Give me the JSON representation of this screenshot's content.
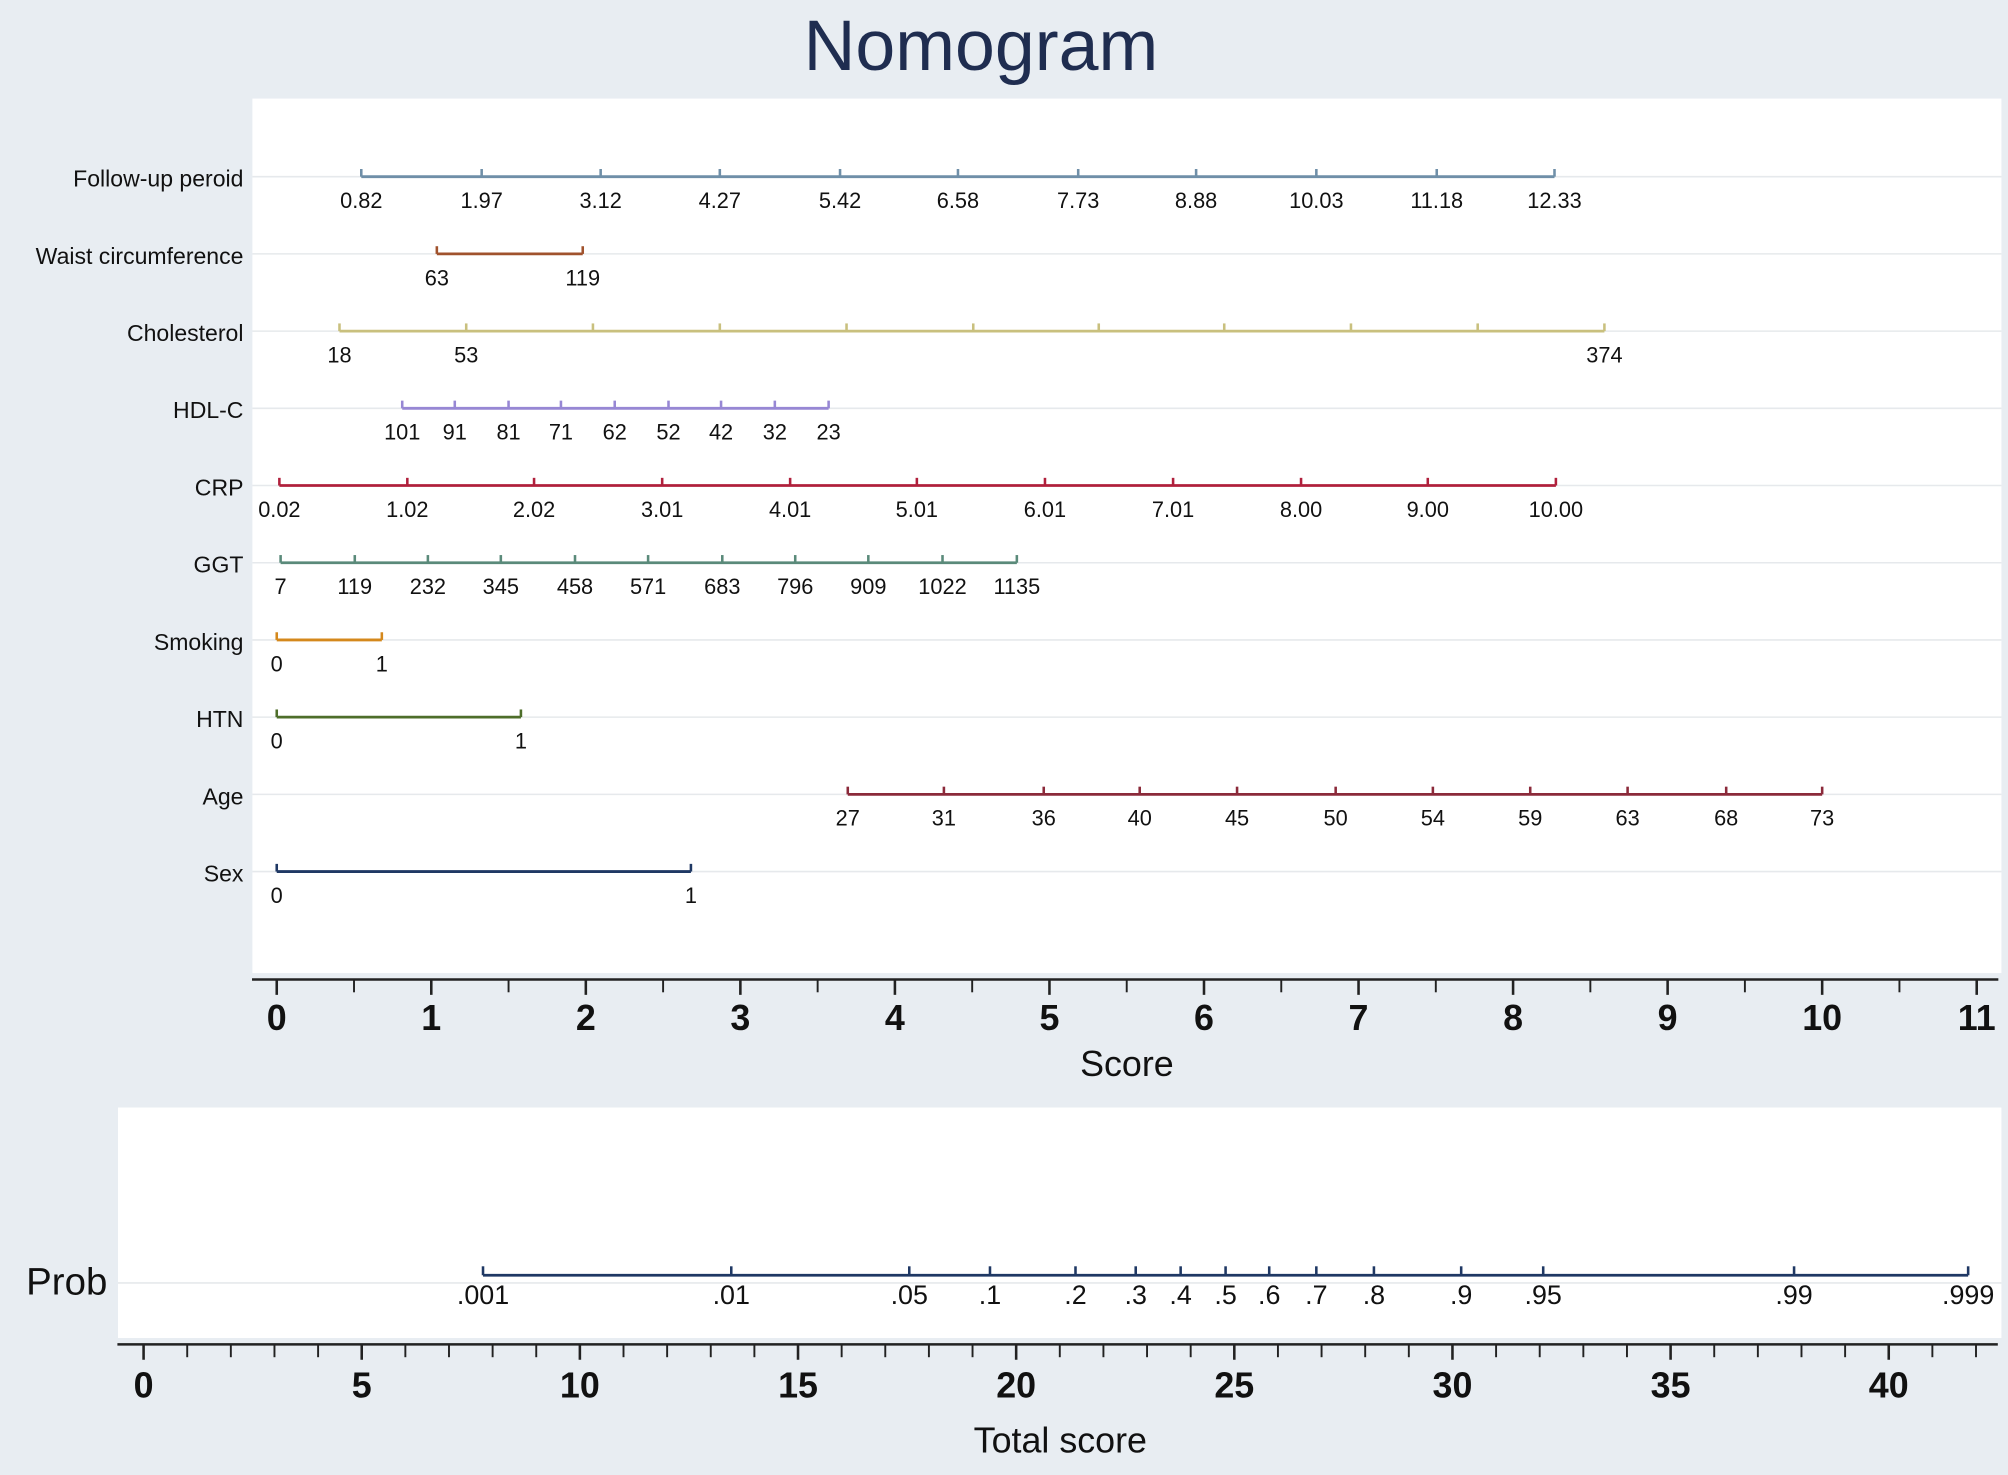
{
  "chart_data": [
    {
      "type": "nomogram",
      "title": "Nomogram",
      "xlabel": "Score",
      "xlim": [
        -0.16,
        11.14
      ],
      "xticks": [
        0,
        1,
        2,
        3,
        4,
        5,
        6,
        7,
        8,
        9,
        10,
        11
      ],
      "xminor": [
        0.5,
        1.5,
        2.5,
        3.5,
        4.5,
        5.5,
        6.5,
        7.5,
        8.5,
        9.5,
        10.5
      ],
      "grid": true,
      "rows": [
        {
          "name": "Follow-up peroid",
          "color": "#6f8fa8",
          "ticks": [
            {
              "value": 0.82,
              "score": 0.547
            },
            {
              "value": 1.97,
              "score": 1.326
            },
            {
              "value": 3.12,
              "score": 2.096
            },
            {
              "value": 4.27,
              "score": 2.867
            },
            {
              "value": 5.42,
              "score": 3.645
            },
            {
              "value": 6.58,
              "score": 4.408
            },
            {
              "value": 7.73,
              "score": 5.186
            },
            {
              "value": 8.88,
              "score": 5.949
            },
            {
              "value": 10.03,
              "score": 6.727
            },
            {
              "value": 11.18,
              "score": 7.506
            },
            {
              "value": 12.33,
              "score": 8.268
            }
          ]
        },
        {
          "name": "Waist circumference",
          "color": "#a0522d",
          "ticks": [
            {
              "value": 63,
              "score": 1.036
            },
            {
              "value": 119,
              "score": 1.98
            }
          ]
        },
        {
          "name": "Cholesterol",
          "color": "#c9c07e",
          "ticks": [
            {
              "value": 18,
              "score": 0.406
            },
            {
              "value": 53,
              "score": 1.226
            },
            {
              "value": null,
              "score": 2.046
            },
            {
              "value": null,
              "score": 2.867
            },
            {
              "value": null,
              "score": 3.687
            },
            {
              "value": null,
              "score": 4.507
            },
            {
              "value": null,
              "score": 5.319
            },
            {
              "value": null,
              "score": 6.131
            },
            {
              "value": null,
              "score": 6.951
            },
            {
              "value": null,
              "score": 7.771
            },
            {
              "value": 374,
              "score": 8.591
            }
          ]
        },
        {
          "name": "HDL-C",
          "color": "#9787d4",
          "ticks": [
            {
              "value": 101,
              "score": 0.812
            },
            {
              "value": 91,
              "score": 1.152
            },
            {
              "value": 81,
              "score": 1.5
            },
            {
              "value": 71,
              "score": 1.839
            },
            {
              "value": 62,
              "score": 2.187
            },
            {
              "value": 52,
              "score": 2.535
            },
            {
              "value": 42,
              "score": 2.875
            },
            {
              "value": 32,
              "score": 3.223
            },
            {
              "value": 23,
              "score": 3.571
            }
          ]
        },
        {
          "name": "CRP",
          "color": "#b0203c",
          "ticks": [
            {
              "value": 0.02,
              "score": 0.017
            },
            {
              "value": 1.02,
              "score": 0.845
            },
            {
              "value": 2.02,
              "score": 1.665
            },
            {
              "value": 3.01,
              "score": 2.494
            },
            {
              "value": 4.01,
              "score": 3.322
            },
            {
              "value": 5.01,
              "score": 4.142
            },
            {
              "value": 6.01,
              "score": 4.971
            },
            {
              "value": 7.01,
              "score": 5.8
            },
            {
              "value": 8,
              "label": "8.00",
              "score": 6.628
            },
            {
              "value": 9,
              "label": "9.00",
              "score": 7.448
            },
            {
              "value": 10,
              "label": "10.00",
              "score": 8.277
            }
          ]
        },
        {
          "name": "GGT",
          "color": "#5a8a7a",
          "ticks": [
            {
              "value": 7,
              "score": 0.025
            },
            {
              "value": 119,
              "score": 0.505
            },
            {
              "value": 232,
              "score": 0.978
            },
            {
              "value": 345,
              "score": 1.45
            },
            {
              "value": 458,
              "score": 1.93
            },
            {
              "value": 571,
              "score": 2.403
            },
            {
              "value": 683,
              "score": 2.883
            },
            {
              "value": 796,
              "score": 3.355
            },
            {
              "value": 909,
              "score": 3.828
            },
            {
              "value": 1022,
              "score": 4.308
            },
            {
              "value": 1135,
              "score": 4.789
            }
          ]
        },
        {
          "name": "Smoking",
          "color": "#d4881c",
          "ticks": [
            {
              "value": 0,
              "score": 0
            },
            {
              "value": 1,
              "score": 0.68
            }
          ]
        },
        {
          "name": "HTN",
          "color": "#4e6e2a",
          "ticks": [
            {
              "value": 0,
              "score": 0
            },
            {
              "value": 1,
              "score": 1.58
            }
          ]
        },
        {
          "name": "Age",
          "color": "#8b2a3a",
          "ticks": [
            {
              "value": 27,
              "score": 3.695
            },
            {
              "value": 31,
              "score": 4.317
            },
            {
              "value": 36,
              "score": 4.963
            },
            {
              "value": 40,
              "score": 5.584
            },
            {
              "value": 45,
              "score": 6.214
            },
            {
              "value": 50,
              "score": 6.852
            },
            {
              "value": 54,
              "score": 7.481
            },
            {
              "value": 59,
              "score": 8.111
            },
            {
              "value": 63,
              "score": 8.741
            },
            {
              "value": 68,
              "score": 9.379
            },
            {
              "value": 73,
              "score": 10
            }
          ]
        },
        {
          "name": "Sex",
          "color": "#1f3864",
          "ticks": [
            {
              "value": 0,
              "score": 0
            },
            {
              "value": 1,
              "score": 2.68
            }
          ]
        }
      ]
    },
    {
      "type": "probability-scale",
      "ylabel": "Prob",
      "xlabel": "Total score",
      "color": "#1f3864",
      "grid": true,
      "xlim": [
        -0.6,
        42.5
      ],
      "xticks": [
        0,
        5,
        10,
        15,
        20,
        25,
        30,
        35,
        40
      ],
      "xminor": [
        1,
        2,
        3,
        4,
        6,
        7,
        8,
        9,
        11,
        12,
        13,
        14,
        16,
        17,
        18,
        19,
        21,
        22,
        23,
        24,
        26,
        27,
        28,
        29,
        31,
        32,
        33,
        34,
        36,
        37,
        38,
        39,
        41,
        42
      ],
      "ticks": [
        {
          "value": 0.001,
          "label": ".001",
          "score": 7.78
        },
        {
          "value": 0.01,
          "label": ".01",
          "score": 13.47
        },
        {
          "value": 0.05,
          "label": ".05",
          "score": 17.55
        },
        {
          "value": 0.1,
          "label": ".1",
          "score": 19.4
        },
        {
          "value": 0.2,
          "label": ".2",
          "score": 21.36
        },
        {
          "value": 0.3,
          "label": ".3",
          "score": 22.74
        },
        {
          "value": 0.4,
          "label": ".4",
          "score": 23.77
        },
        {
          "value": 0.5,
          "label": ".5",
          "score": 24.8
        },
        {
          "value": 0.6,
          "label": ".6",
          "score": 25.8
        },
        {
          "value": 0.7,
          "label": ".7",
          "score": 26.88
        },
        {
          "value": 0.8,
          "label": ".8",
          "score": 28.2
        },
        {
          "value": 0.9,
          "label": ".9",
          "score": 30.2
        },
        {
          "value": 0.95,
          "label": ".95",
          "score": 32.08
        },
        {
          "value": 0.99,
          "label": ".99",
          "score": 37.83
        },
        {
          "value": 0.999,
          "label": ".999",
          "score": 41.82
        }
      ]
    }
  ]
}
